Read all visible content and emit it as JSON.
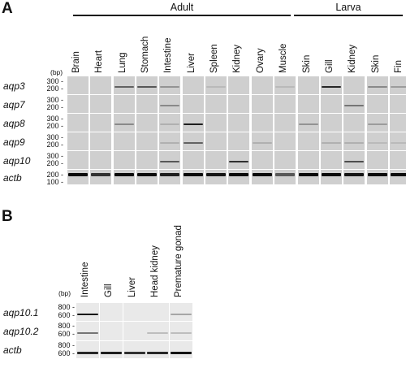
{
  "panel_a": {
    "letter": "A",
    "groups": {
      "adult": "Adult",
      "larva": "Larva"
    },
    "unit": "(bp)",
    "tissues": [
      "Brain",
      "Heart",
      "Lung",
      "Stomach",
      "Intestine",
      "Liver",
      "Spleen",
      "Kidney",
      "Ovary",
      "Muscle",
      "Skin",
      "Gill",
      "Kidney",
      "Skin",
      "Fin"
    ],
    "rows": [
      {
        "gene": "aqp3",
        "ticks": [
          "300",
          "200"
        ],
        "bands": [
          0,
          0,
          0.55,
          0.6,
          0.3,
          0,
          0.1,
          0,
          0,
          0.1,
          0,
          0.85,
          0,
          0.35,
          0.25
        ]
      },
      {
        "gene": "aqp7",
        "ticks": [
          "300",
          "200"
        ],
        "bands": [
          0,
          0,
          0,
          0,
          0.35,
          0,
          0,
          0,
          0,
          0,
          0,
          0,
          0.45,
          0,
          0
        ]
      },
      {
        "gene": "aqp8",
        "ticks": [
          "300",
          "200"
        ],
        "bands": [
          0,
          0,
          0.35,
          0,
          0.15,
          0.9,
          0,
          0,
          0,
          0,
          0.3,
          0,
          0,
          0.25,
          0
        ]
      },
      {
        "gene": "aqp9",
        "ticks": [
          "300",
          "200"
        ],
        "bands": [
          0,
          0,
          0,
          0,
          0.15,
          0.55,
          0,
          0,
          0.15,
          0,
          0,
          0.15,
          0.15,
          0.1,
          0.1
        ]
      },
      {
        "gene": "aqp10",
        "ticks": [
          "300",
          "200"
        ],
        "bands": [
          0,
          0,
          0,
          0,
          0.6,
          0,
          0,
          0.8,
          0,
          0,
          0,
          0,
          0.65,
          0,
          0
        ]
      },
      {
        "gene": "actb",
        "ticks": [
          "200",
          "100"
        ],
        "bands": [
          1,
          0.8,
          1,
          1,
          0.9,
          1,
          0.95,
          1,
          1,
          0.6,
          1,
          1,
          0.95,
          1,
          1
        ]
      }
    ]
  },
  "panel_b": {
    "letter": "B",
    "unit": "(bp)",
    "tissues": [
      "Intestine",
      "Gill",
      "Liver",
      "Head kidney",
      "Premature gonad"
    ],
    "rows": [
      {
        "gene": "aqp10.1",
        "ticks": [
          "800",
          "600"
        ],
        "bands": [
          0.95,
          0,
          0,
          0,
          0.2
        ]
      },
      {
        "gene": "aqp10.2",
        "ticks": [
          "800",
          "600"
        ],
        "bands": [
          0.45,
          0,
          0,
          0.08,
          0.08
        ]
      },
      {
        "gene": "actb",
        "ticks": [
          "800",
          "600"
        ],
        "bands": [
          0.85,
          0.9,
          0.8,
          0.85,
          0.95
        ]
      }
    ]
  }
}
